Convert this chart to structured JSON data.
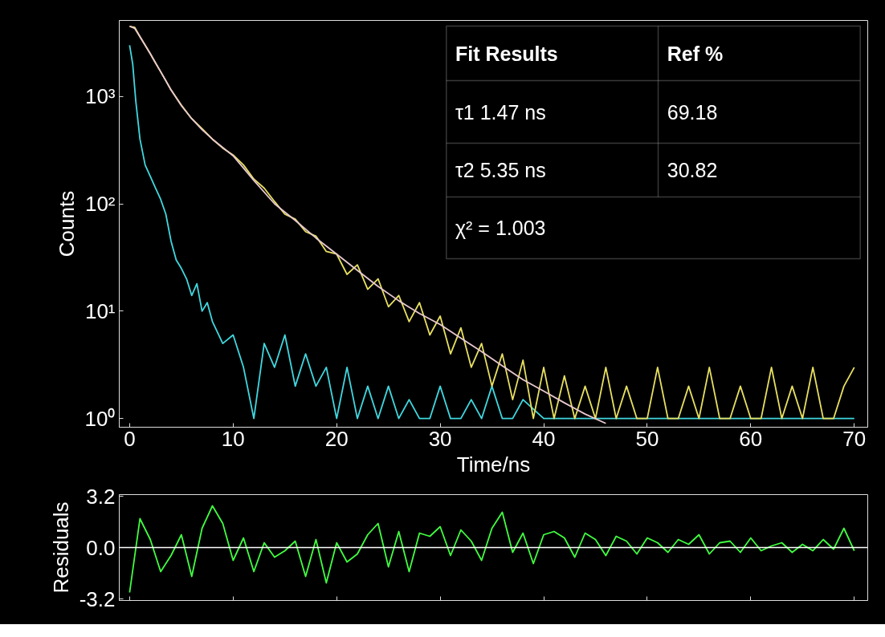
{
  "chart_data": [
    {
      "type": "line",
      "xlabel": "Time/ns",
      "ylabel": "Counts",
      "log": "y",
      "grid": false,
      "xlim": [
        -1,
        71.3
      ],
      "ylim": [
        0.83,
        5100
      ],
      "xticks": [
        0,
        10,
        20,
        30,
        40,
        50,
        60,
        70
      ],
      "yticks": [
        {
          "value": 1,
          "label": "10⁰"
        },
        {
          "value": 10,
          "label": "10¹"
        },
        {
          "value": 100,
          "label": "10²"
        },
        {
          "value": 1000,
          "label": "10³"
        }
      ],
      "annotations": [
        "Fit Results",
        "Ref %",
        "τ1   1.47 ns",
        "69.18",
        "τ2   5.35 ns",
        "30.82",
        "χ² = 1.003"
      ],
      "series": [
        {
          "color": "#40d8e0",
          "x": [
            0,
            0.3,
            0.6,
            1,
            1.5,
            2,
            2.5,
            3,
            3.5,
            4,
            4.5,
            5,
            5.5,
            6,
            6.5,
            7,
            7.5,
            8,
            9,
            10,
            11,
            12,
            13,
            14,
            15,
            16,
            17,
            18,
            19,
            20,
            21,
            22,
            23,
            24,
            25,
            26,
            27,
            28,
            29,
            30,
            31,
            32,
            33,
            34,
            35,
            36,
            37,
            38,
            40,
            42,
            44,
            46,
            48,
            50,
            55,
            60,
            65,
            70
          ],
          "values": [
            3000,
            2000,
            900,
            400,
            230,
            180,
            140,
            110,
            80,
            45,
            30,
            25,
            20,
            14,
            18,
            10,
            12,
            8,
            5,
            6,
            3,
            1,
            5,
            3,
            6,
            2,
            4,
            2,
            3,
            1,
            3,
            1,
            2,
            1,
            2,
            1,
            1.5,
            1,
            1,
            2,
            1,
            1,
            1.5,
            1,
            2,
            1,
            1,
            1.5,
            1,
            1,
            1,
            1,
            1,
            1,
            1,
            1,
            1,
            1
          ]
        },
        {
          "color": "#e8e060",
          "x": [
            0,
            0.5,
            1,
            1.5,
            2,
            2.5,
            3,
            3.5,
            4,
            5,
            6,
            7,
            8,
            9,
            10,
            11,
            12,
            13,
            14,
            15,
            16,
            17,
            18,
            19,
            20,
            21,
            22,
            23,
            24,
            25,
            26,
            27,
            28,
            29,
            30,
            31,
            32,
            33,
            34,
            35,
            36,
            37,
            38,
            39,
            40,
            41,
            42,
            43,
            44,
            45,
            46,
            47,
            48,
            49,
            50,
            51,
            52,
            53,
            54,
            55,
            56,
            57,
            58,
            59,
            60,
            61,
            62,
            63,
            64,
            65,
            66,
            67,
            68,
            69,
            70
          ],
          "values": [
            4500,
            4400,
            3600,
            3000,
            2500,
            2050,
            1700,
            1400,
            1150,
            830,
            620,
            500,
            400,
            330,
            285,
            230,
            170,
            140,
            105,
            80,
            72,
            55,
            50,
            36,
            34,
            22,
            27,
            16,
            20,
            11,
            14,
            8,
            12,
            6,
            9,
            4,
            7,
            3,
            5,
            2,
            4,
            1.5,
            3.5,
            1,
            3,
            1,
            2.5,
            1,
            2,
            1,
            3,
            1,
            2,
            1,
            1,
            3,
            1,
            1,
            2,
            1,
            3,
            1,
            1,
            2,
            1,
            1,
            3,
            1,
            2,
            1,
            3,
            1,
            1,
            2,
            3
          ]
        },
        {
          "color": "#e8c8d0",
          "x": [
            0,
            0.5,
            1,
            2,
            3,
            4,
            5,
            6,
            7,
            8,
            10,
            12,
            14,
            16,
            18,
            20,
            22,
            24,
            26,
            28,
            30,
            32,
            34,
            36,
            38,
            40,
            42,
            44,
            46
          ],
          "values": [
            4500,
            4300,
            3600,
            2500,
            1700,
            1150,
            820,
            620,
            490,
            400,
            280,
            165,
            100,
            70,
            48,
            34,
            24,
            17,
            12.5,
            9.5,
            7.5,
            5.6,
            4.2,
            3.1,
            2.3,
            1.8,
            1.4,
            1.1,
            0.9
          ]
        }
      ]
    },
    {
      "type": "line",
      "ylabel": "Residuals",
      "grid": false,
      "tick_labels": "y",
      "xlim": [
        -1,
        71.3
      ],
      "ylim": [
        -3.3,
        3.3
      ],
      "xticks": [
        {
          "value": 0,
          "label": null
        },
        {
          "value": 10,
          "label": null
        },
        {
          "value": 20,
          "label": null
        },
        {
          "value": 30,
          "label": null
        },
        {
          "value": 40,
          "label": null
        },
        {
          "value": 50,
          "label": null
        },
        {
          "value": 60,
          "label": null
        },
        {
          "value": 70,
          "label": null
        }
      ],
      "yticks": [
        {
          "value": -3.2,
          "label": "-3.2"
        },
        {
          "value": 0,
          "label": "0.0"
        },
        3.2
      ],
      "ref_lines": [
        {
          "axis": "y",
          "value": 0,
          "color": "#ffffff"
        }
      ],
      "series": [
        {
          "color": "#40ff40",
          "x": [
            0,
            1,
            2,
            3,
            4,
            5,
            6,
            7,
            8,
            9,
            10,
            11,
            12,
            13,
            14,
            15,
            16,
            17,
            18,
            19,
            20,
            21,
            22,
            23,
            24,
            25,
            26,
            27,
            28,
            29,
            30,
            31,
            32,
            33,
            34,
            35,
            36,
            37,
            38,
            39,
            40,
            41,
            42,
            43,
            44,
            45,
            46,
            47,
            48,
            49,
            50,
            51,
            52,
            53,
            54,
            55,
            56,
            57,
            58,
            59,
            60,
            61,
            62,
            63,
            64,
            65,
            66,
            67,
            68,
            69,
            70
          ],
          "values": [
            -2.8,
            1.8,
            0.5,
            -1.5,
            -0.5,
            0.8,
            -1.8,
            1.2,
            2.6,
            1.5,
            -0.8,
            0.6,
            -1.5,
            0.3,
            -0.6,
            -0.2,
            0.4,
            -1.8,
            0.5,
            -2.2,
            0.3,
            -0.9,
            -0.4,
            0.8,
            1.5,
            -1.2,
            1.0,
            -1.5,
            0.9,
            0.7,
            1.3,
            -0.5,
            1.1,
            0.4,
            -0.8,
            1.2,
            2.2,
            -0.3,
            0.9,
            -1.0,
            0.8,
            1.0,
            0.6,
            -0.6,
            0.9,
            0.5,
            -0.5,
            0.7,
            0.4,
            -0.4,
            0.6,
            0.3,
            -0.3,
            0.5,
            0.2,
            0.8,
            -0.4,
            0.3,
            0.4,
            -0.3,
            0.6,
            -0.2,
            0.1,
            0.3,
            -0.3,
            0.2,
            -0.2,
            0.5,
            -0.1,
            1.2,
            -0.2
          ]
        }
      ]
    }
  ]
}
